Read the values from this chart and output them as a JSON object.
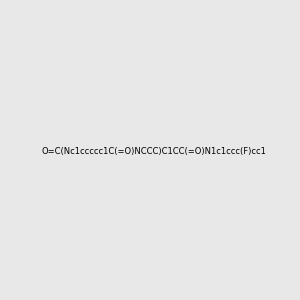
{
  "smiles": "O=C(Nc1ccccc1C(=O)NCCC)C1CC(=O)N1c1ccc(F)cc1",
  "title": "",
  "bg_color": "#e8e8e8",
  "figsize": [
    3.0,
    3.0
  ],
  "dpi": 100
}
